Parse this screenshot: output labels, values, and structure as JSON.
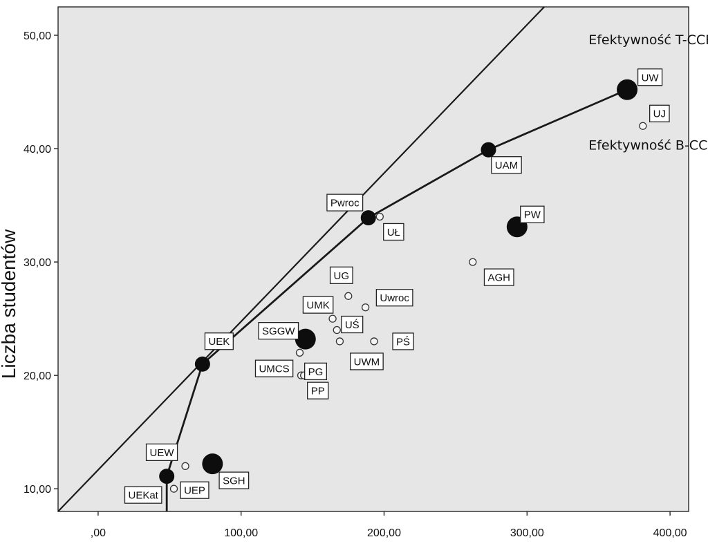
{
  "chart_data": {
    "type": "scatter",
    "xlabel": "",
    "ylabel": "Liczba studentów",
    "xlim": [
      -28,
      413
    ],
    "ylim": [
      8.0,
      52.5
    ],
    "x_ticks": [
      0,
      100,
      200,
      300,
      400
    ],
    "x_tick_labels": [
      ",00",
      "100,00",
      "200,00",
      "300,00",
      "400,00"
    ],
    "y_ticks": [
      10,
      20,
      30,
      40,
      50
    ],
    "y_tick_labels": [
      "10,00",
      "20,00",
      "30,00",
      "40,00",
      "50,00"
    ],
    "grid": false,
    "background": "#e6e6e6",
    "points": [
      {
        "label": "UW",
        "x": 370,
        "y": 45.2,
        "efficient": true,
        "size": "large"
      },
      {
        "label": "UJ",
        "x": 381,
        "y": 42.0,
        "efficient": false,
        "size": "small"
      },
      {
        "label": "UAM",
        "x": 273,
        "y": 39.9,
        "efficient": true,
        "size": "medium"
      },
      {
        "label": "PW",
        "x": 293,
        "y": 33.1,
        "efficient": true,
        "size": "large"
      },
      {
        "label": "Pwroc",
        "x": 189,
        "y": 33.9,
        "efficient": true,
        "size": "medium"
      },
      {
        "label": "UŁ",
        "x": 197,
        "y": 34.0,
        "efficient": false,
        "size": "small"
      },
      {
        "label": "AGH",
        "x": 262,
        "y": 30.0,
        "efficient": false,
        "size": "small"
      },
      {
        "label": "UG",
        "x": 175,
        "y": 27.0,
        "efficient": false,
        "size": "small"
      },
      {
        "label": "Uwroc",
        "x": 187,
        "y": 26.0,
        "efficient": false,
        "size": "small"
      },
      {
        "label": "UMK",
        "x": 164,
        "y": 25.0,
        "efficient": false,
        "size": "small"
      },
      {
        "label": "UŚ",
        "x": 167,
        "y": 24.0,
        "efficient": false,
        "size": "small"
      },
      {
        "label": "SGGW",
        "x": 145,
        "y": 23.2,
        "efficient": true,
        "size": "large"
      },
      {
        "label": "PG",
        "x": 141,
        "y": 22.0,
        "efficient": false,
        "size": "small"
      },
      {
        "label": "UWM",
        "x": 169,
        "y": 23.0,
        "efficient": false,
        "size": "small"
      },
      {
        "label": "PŚ",
        "x": 193,
        "y": 23.0,
        "efficient": false,
        "size": "small"
      },
      {
        "label": "UEK",
        "x": 73,
        "y": 21.0,
        "efficient": true,
        "size": "medium"
      },
      {
        "label": "UMCS",
        "x": 142,
        "y": 20.0,
        "efficient": false,
        "size": "small"
      },
      {
        "label": "PP",
        "x": 144,
        "y": 20.0,
        "efficient": false,
        "size": "small"
      },
      {
        "label": "UEW",
        "x": 61,
        "y": 12.0,
        "efficient": false,
        "size": "small"
      },
      {
        "label": "SGH",
        "x": 80,
        "y": 12.2,
        "efficient": true,
        "size": "large"
      },
      {
        "label": "UEKat",
        "x": 48,
        "y": 11.1,
        "efficient": true,
        "size": "medium"
      },
      {
        "label": "UEP",
        "x": 53,
        "y": 10.0,
        "efficient": false,
        "size": "small"
      }
    ],
    "frontier_bcc": [
      [
        48,
        2.0
      ],
      [
        48,
        11.1
      ],
      [
        73,
        21.0
      ],
      [
        189,
        33.9
      ],
      [
        273,
        39.9
      ],
      [
        370,
        45.2
      ]
    ],
    "frontier_ccr": [
      [
        -28,
        8.0
      ],
      [
        312,
        52.5
      ]
    ],
    "annotations": [
      {
        "text": "Efektywność T-CCR",
        "x": 343,
        "y": 49.2
      },
      {
        "text": "Efektywność B-CCR",
        "x": 343,
        "y": 39.9
      }
    ]
  }
}
